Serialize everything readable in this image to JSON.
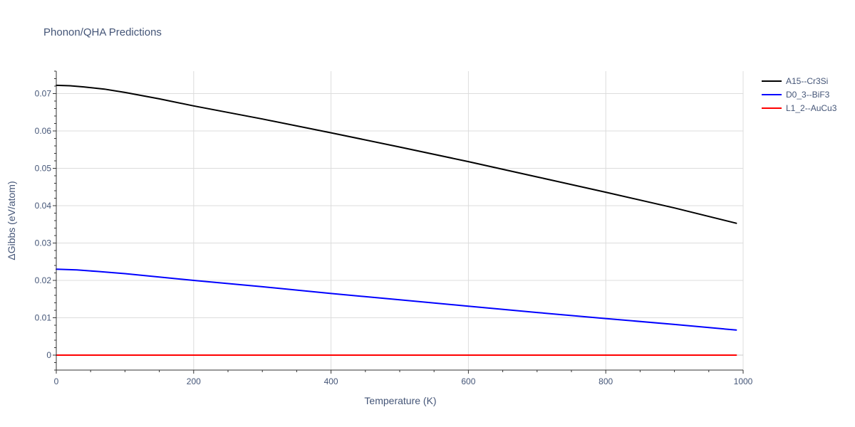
{
  "chart_data": {
    "type": "line",
    "title": "Phonon/QHA Predictions",
    "xlabel": "Temperature (K)",
    "ylabel": "ΔGibbs (eV/atom)",
    "xlim": [
      0,
      1000
    ],
    "ylim": [
      -0.004,
      0.076
    ],
    "x_ticks": [
      0,
      200,
      400,
      600,
      800,
      1000
    ],
    "x_tick_labels": [
      "0",
      "200",
      "400",
      "600",
      "800",
      "1000"
    ],
    "y_ticks": [
      0,
      0.01,
      0.02,
      0.03,
      0.04,
      0.05,
      0.06,
      0.07
    ],
    "y_tick_labels": [
      "0",
      "0.01",
      "0.02",
      "0.03",
      "0.04",
      "0.05",
      "0.06",
      "0.07"
    ],
    "grid": true,
    "legend_position": "top-right",
    "series": [
      {
        "name": "A15--Cr3Si",
        "color": "#000000",
        "x": [
          0,
          20,
          40,
          70,
          100,
          150,
          200,
          300,
          400,
          500,
          600,
          700,
          800,
          900,
          990
        ],
        "y": [
          0.0722,
          0.0721,
          0.0718,
          0.0712,
          0.0703,
          0.0686,
          0.0667,
          0.0632,
          0.0595,
          0.0557,
          0.0518,
          0.0477,
          0.0436,
          0.0394,
          0.0353
        ]
      },
      {
        "name": "D0_3--BiF3",
        "color": "#0000ff",
        "x": [
          0,
          30,
          60,
          100,
          200,
          300,
          400,
          500,
          600,
          700,
          800,
          900,
          990
        ],
        "y": [
          0.023,
          0.0228,
          0.0224,
          0.0218,
          0.02,
          0.0183,
          0.0165,
          0.0148,
          0.0131,
          0.0114,
          0.0098,
          0.0082,
          0.0067
        ]
      },
      {
        "name": "L1_2--AuCu3",
        "color": "#ff0000",
        "x": [
          0,
          990
        ],
        "y": [
          0,
          0
        ]
      }
    ]
  }
}
